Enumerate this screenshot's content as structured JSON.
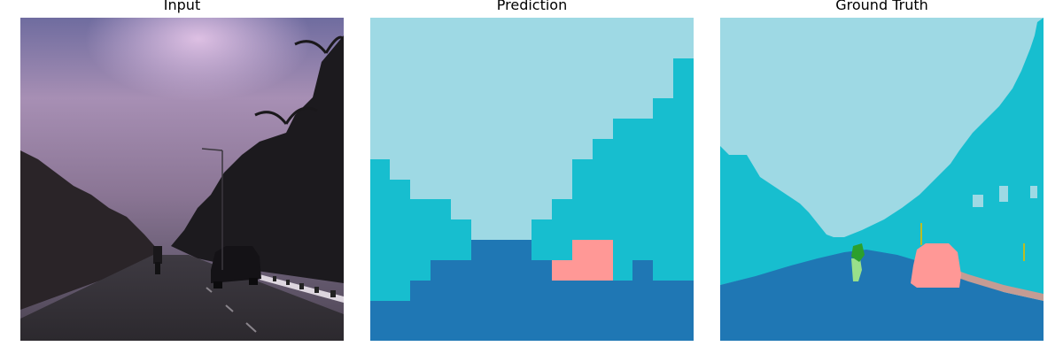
{
  "titles": {
    "input": "Input",
    "prediction": "Prediction",
    "ground_truth": "Ground Truth"
  },
  "colors": {
    "sky": "#9ed9e4",
    "vegetation": "#17becf",
    "road": "#1f77b4",
    "car": "#ff9896",
    "person": "#2ca02c",
    "rider": "#98df8a",
    "sidewalk": "#c49c94",
    "pole": "#bcbd22"
  }
}
